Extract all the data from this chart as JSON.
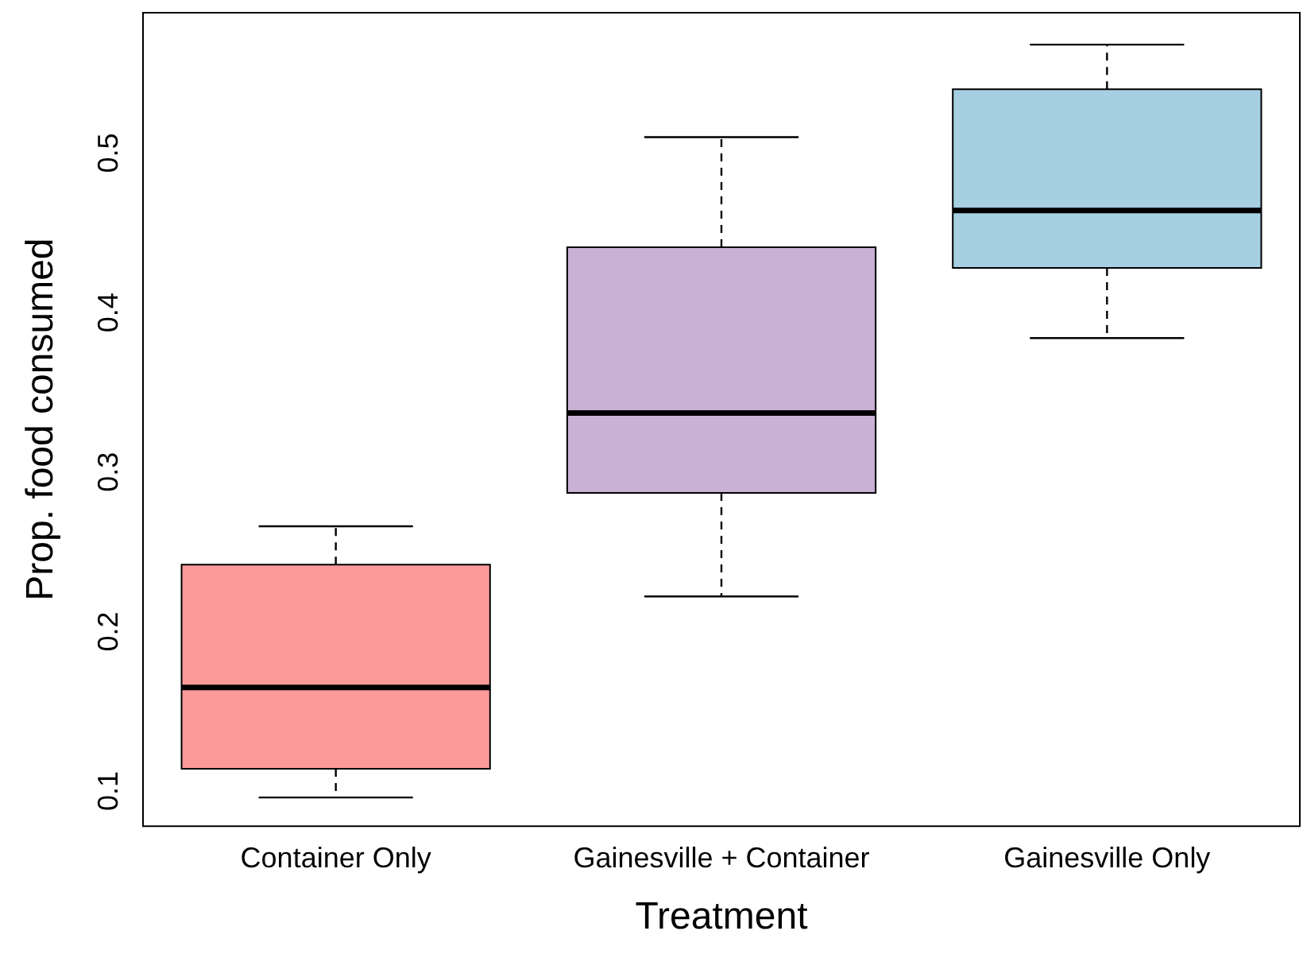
{
  "chart_data": {
    "type": "box",
    "xlabel": "Treatment",
    "ylabel": "Prop. food consumed",
    "categories": [
      "Container Only",
      "Gainesville + Container",
      "Gainesville Only"
    ],
    "colors": [
      "#fc9a9a",
      "#c9b1d6",
      "#a6cfe2"
    ],
    "boxes": [
      {
        "low": 0.096,
        "q1": 0.114,
        "median": 0.165,
        "q3": 0.242,
        "high": 0.266
      },
      {
        "low": 0.222,
        "q1": 0.287,
        "median": 0.337,
        "q3": 0.441,
        "high": 0.51
      },
      {
        "low": 0.384,
        "q1": 0.428,
        "median": 0.464,
        "q3": 0.54,
        "high": 0.568
      }
    ],
    "ylim": [
      0.078,
      0.588
    ],
    "yticks": [
      0.1,
      0.2,
      0.3,
      0.4,
      0.5
    ],
    "grid": false,
    "legend": false
  }
}
